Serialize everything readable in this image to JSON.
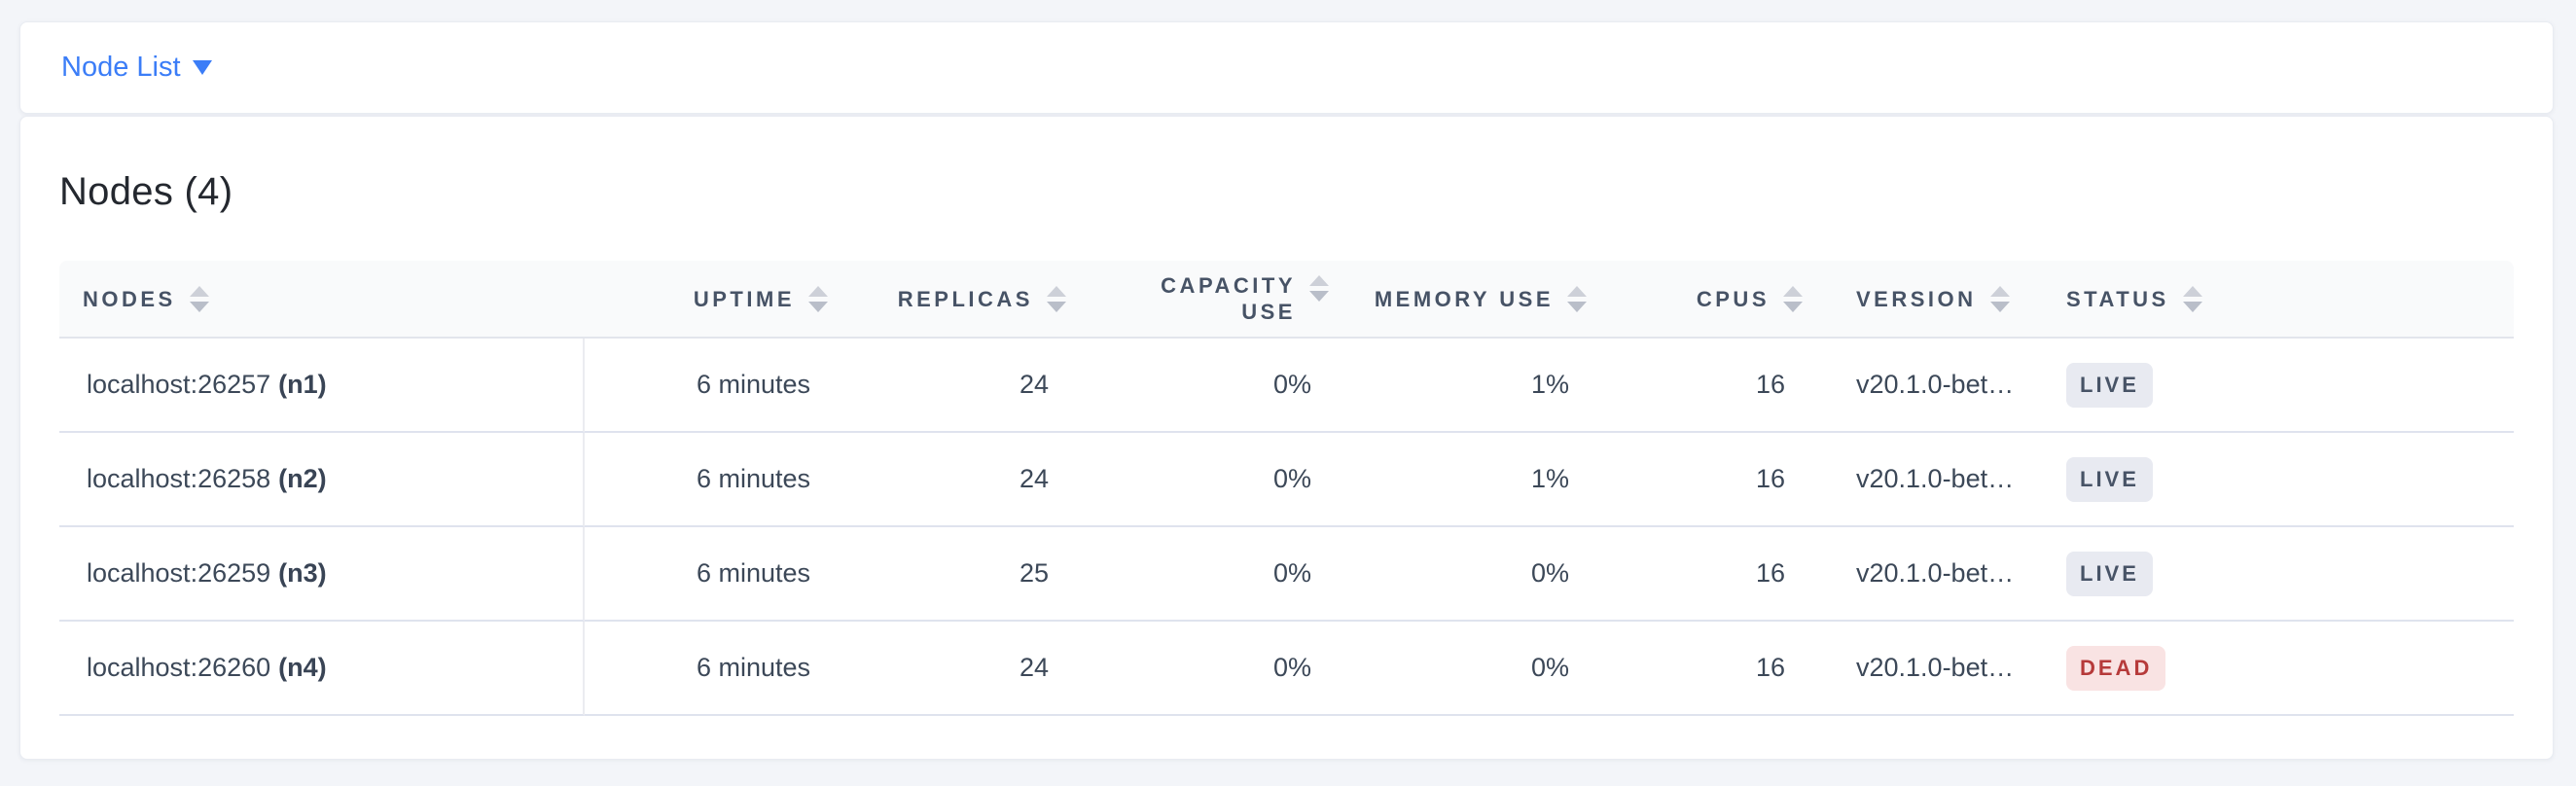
{
  "view_selector": {
    "label": "Node List"
  },
  "card": {
    "title": "Nodes (4)"
  },
  "table": {
    "columns": [
      {
        "key": "nodes",
        "label": "NODES",
        "align": "left"
      },
      {
        "key": "uptime",
        "label": "UPTIME",
        "align": "right"
      },
      {
        "key": "replicas",
        "label": "REPLICAS",
        "align": "right"
      },
      {
        "key": "capacity_use",
        "label": "CAPACITY USE",
        "align": "right"
      },
      {
        "key": "memory_use",
        "label": "MEMORY USE",
        "align": "right"
      },
      {
        "key": "cpus",
        "label": "CPUS",
        "align": "right"
      },
      {
        "key": "version",
        "label": "VERSION",
        "align": "left"
      },
      {
        "key": "status",
        "label": "STATUS",
        "align": "left"
      }
    ],
    "rows": [
      {
        "address": "localhost:26257",
        "node_id": "(n1)",
        "uptime": "6 minutes",
        "replicas": "24",
        "capacity_use": "0%",
        "memory_use": "1%",
        "cpus": "16",
        "version": "v20.1.0-bet…",
        "status": "LIVE"
      },
      {
        "address": "localhost:26258",
        "node_id": "(n2)",
        "uptime": "6 minutes",
        "replicas": "24",
        "capacity_use": "0%",
        "memory_use": "1%",
        "cpus": "16",
        "version": "v20.1.0-bet…",
        "status": "LIVE"
      },
      {
        "address": "localhost:26259",
        "node_id": "(n3)",
        "uptime": "6 minutes",
        "replicas": "25",
        "capacity_use": "0%",
        "memory_use": "0%",
        "cpus": "16",
        "version": "v20.1.0-bet…",
        "status": "LIVE"
      },
      {
        "address": "localhost:26260",
        "node_id": "(n4)",
        "uptime": "6 minutes",
        "replicas": "24",
        "capacity_use": "0%",
        "memory_use": "0%",
        "cpus": "16",
        "version": "v20.1.0-bet…",
        "status": "DEAD"
      }
    ]
  },
  "colors": {
    "accent_blue": "#3b7df7",
    "header_text": "#475366",
    "cell_text": "#3c4858",
    "status_live_bg": "#e8eaf1",
    "status_live_text": "#475366",
    "status_dead_bg": "#f9e3e3",
    "status_dead_text": "#b63a3a",
    "page_background": "#f3f5f9"
  }
}
